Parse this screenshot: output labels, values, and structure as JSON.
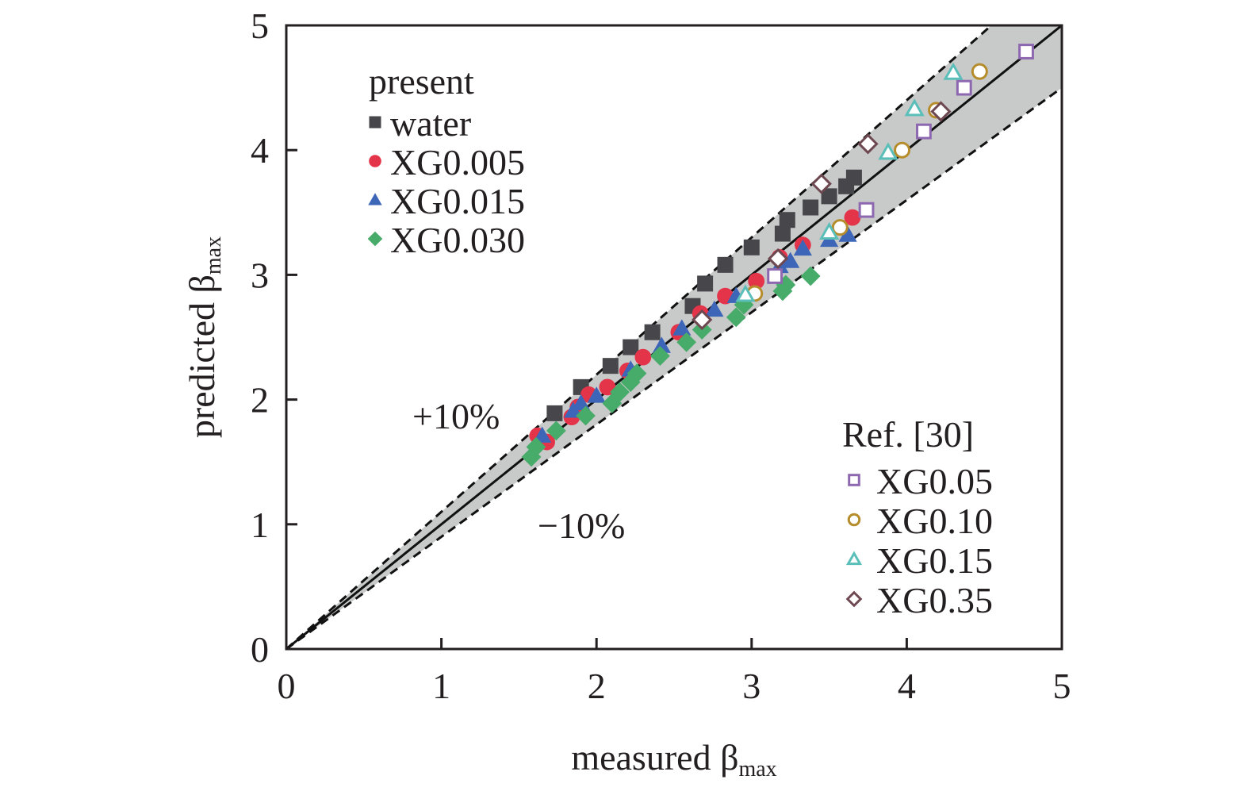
{
  "chart_data": {
    "type": "scatter",
    "title": "",
    "xlabel": "measured β",
    "xlabel_sub": "max",
    "ylabel": "predicted β",
    "ylabel_sub": "max",
    "xlim": [
      0,
      5
    ],
    "ylim": [
      0,
      5
    ],
    "xticks": [
      "0",
      "1",
      "2",
      "3",
      "4",
      "5"
    ],
    "yticks": [
      "0",
      "1",
      "2",
      "3",
      "4",
      "5"
    ],
    "grid": false,
    "reference_line": {
      "label": "y = x",
      "style": "solid"
    },
    "bounds": [
      {
        "label": "+10%",
        "factor": 1.1,
        "style": "dashed"
      },
      {
        "label": "−10%",
        "factor": 0.9,
        "style": "dashed"
      }
    ],
    "band_color": "#c8c9c9",
    "legend_groups": [
      {
        "title": "present",
        "placement": "top-left",
        "series_indices": [
          0,
          1,
          2,
          3
        ]
      },
      {
        "title": "Ref. [30]",
        "placement": "bottom-right",
        "series_indices": [
          4,
          5,
          6,
          7
        ]
      }
    ],
    "series": [
      {
        "name": "water",
        "marker": "square",
        "filled": true,
        "color": "#46464b",
        "x": [
          1.73,
          1.9,
          2.09,
          2.22,
          2.36,
          2.62,
          2.7,
          2.83,
          3.0,
          3.2,
          3.23,
          3.38,
          3.5,
          3.61,
          3.66
        ],
        "y": [
          1.89,
          2.1,
          2.27,
          2.42,
          2.54,
          2.75,
          2.93,
          3.08,
          3.22,
          3.33,
          3.44,
          3.54,
          3.63,
          3.71,
          3.78
        ]
      },
      {
        "name": "XG0.005",
        "marker": "circle",
        "filled": true,
        "color": "#e4344a",
        "x": [
          1.62,
          1.68,
          1.84,
          1.88,
          1.95,
          2.07,
          2.2,
          2.3,
          2.53,
          2.67,
          2.83,
          3.03,
          3.18,
          3.33,
          3.65
        ],
        "y": [
          1.71,
          1.66,
          1.86,
          1.94,
          2.04,
          2.1,
          2.23,
          2.34,
          2.54,
          2.69,
          2.83,
          2.95,
          3.14,
          3.24,
          3.46
        ]
      },
      {
        "name": "XG0.015",
        "marker": "triangle",
        "filled": true,
        "color": "#3d66b8",
        "x": [
          1.65,
          1.85,
          1.9,
          2.0,
          2.22,
          2.42,
          2.55,
          2.76,
          2.9,
          3.18,
          3.25,
          3.33,
          3.5,
          3.62
        ],
        "y": [
          1.71,
          1.91,
          1.97,
          2.03,
          2.24,
          2.43,
          2.57,
          2.72,
          2.83,
          3.07,
          3.11,
          3.21,
          3.28,
          3.32
        ]
      },
      {
        "name": "XG0.030",
        "marker": "diamond",
        "filled": true,
        "color": "#47ab6a",
        "x": [
          1.58,
          1.61,
          1.74,
          1.93,
          2.1,
          2.15,
          2.22,
          2.26,
          2.41,
          2.58,
          2.68,
          2.9,
          2.95,
          3.2,
          3.22,
          3.38
        ],
        "y": [
          1.54,
          1.62,
          1.75,
          1.87,
          1.97,
          2.06,
          2.14,
          2.21,
          2.35,
          2.46,
          2.56,
          2.66,
          2.76,
          2.87,
          2.92,
          2.99
        ]
      },
      {
        "name": "XG0.05",
        "marker": "square",
        "filled": false,
        "color": "#8d68b0",
        "x": [
          3.15,
          3.74,
          4.11,
          4.37,
          4.77
        ],
        "y": [
          2.99,
          3.52,
          4.15,
          4.5,
          4.79
        ]
      },
      {
        "name": "XG0.10",
        "marker": "circle",
        "filled": false,
        "color": "#b68d2c",
        "x": [
          3.02,
          3.57,
          3.97,
          4.19,
          4.47
        ],
        "y": [
          2.85,
          3.38,
          4.0,
          4.32,
          4.63
        ]
      },
      {
        "name": "XG0.15",
        "marker": "triangle",
        "filled": false,
        "color": "#5bbfb9",
        "x": [
          2.96,
          3.5,
          3.88,
          4.05,
          4.3
        ],
        "y": [
          2.84,
          3.34,
          3.98,
          4.33,
          4.62
        ]
      },
      {
        "name": "XG0.35",
        "marker": "diamond",
        "filled": false,
        "color": "#6e4850",
        "x": [
          2.68,
          3.17,
          3.45,
          3.75,
          4.22
        ],
        "y": [
          2.64,
          3.13,
          3.73,
          4.05,
          4.31
        ]
      }
    ]
  }
}
